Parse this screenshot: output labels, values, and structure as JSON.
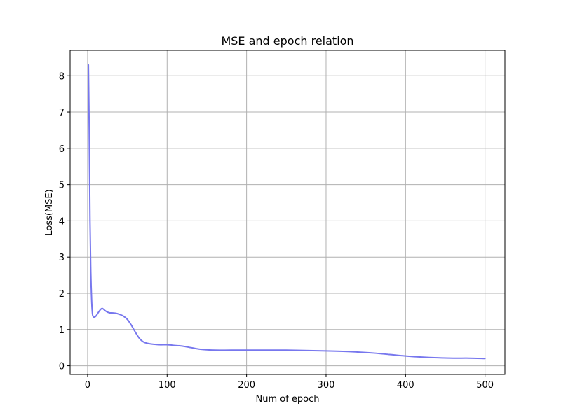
{
  "chart_data": {
    "type": "line",
    "title": "MSE and epoch relation",
    "xlabel": "Num of epoch",
    "ylabel": "Loss(MSE)",
    "xlim": [
      -22,
      525
    ],
    "ylim": [
      -0.24,
      8.7
    ],
    "xticks": [
      0,
      100,
      200,
      300,
      400,
      500
    ],
    "yticks": [
      0,
      1,
      2,
      3,
      4,
      5,
      6,
      7,
      8
    ],
    "grid": true,
    "series": [
      {
        "color": "#7777ee",
        "x": [
          1,
          2,
          3,
          4,
          5,
          6,
          7,
          8,
          10,
          12,
          15,
          18,
          20,
          22,
          25,
          28,
          30,
          35,
          40,
          45,
          50,
          55,
          60,
          65,
          70,
          75,
          80,
          90,
          100,
          110,
          120,
          130,
          140,
          150,
          160,
          180,
          200,
          250,
          300,
          330,
          360,
          380,
          400,
          420,
          440,
          460,
          480,
          500
        ],
        "y": [
          8.3,
          6.5,
          4.0,
          2.6,
          1.85,
          1.45,
          1.36,
          1.34,
          1.36,
          1.42,
          1.52,
          1.58,
          1.56,
          1.52,
          1.48,
          1.46,
          1.46,
          1.45,
          1.42,
          1.37,
          1.28,
          1.12,
          0.93,
          0.76,
          0.66,
          0.62,
          0.6,
          0.58,
          0.58,
          0.56,
          0.54,
          0.5,
          0.46,
          0.44,
          0.43,
          0.43,
          0.43,
          0.43,
          0.41,
          0.39,
          0.35,
          0.31,
          0.27,
          0.24,
          0.22,
          0.21,
          0.21,
          0.2
        ]
      }
    ]
  }
}
